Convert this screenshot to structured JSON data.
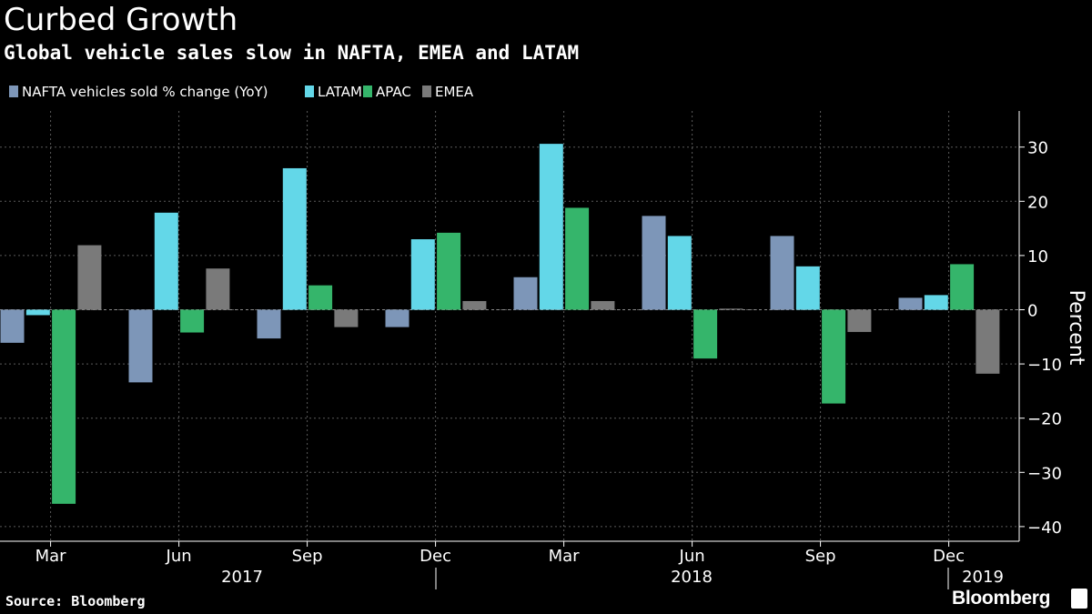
{
  "header": {
    "title": "Curbed Growth",
    "subtitle": "Global vehicle sales slow in NAFTA, EMEA and LATAM"
  },
  "footer": {
    "source": "Source: Bloomberg",
    "brand": "Bloomberg"
  },
  "chart_data": {
    "type": "bar",
    "title": "Curbed Growth",
    "subtitle": "Global vehicle sales slow in NAFTA, EMEA and LATAM",
    "ylabel": "Percent",
    "ylim": [
      -41,
      37
    ],
    "yticks": [
      30,
      20,
      10,
      0,
      -10,
      -20,
      -30,
      -40
    ],
    "grid": true,
    "legend_position": "top-left",
    "categories": [
      "Mar 2017",
      "Jun 2017",
      "Sep 2017",
      "Dec 2017",
      "Mar 2018",
      "Jun 2018",
      "Sep 2018",
      "Dec 2018"
    ],
    "x_tick_labels": [
      "Mar",
      "Jun",
      "Sep",
      "Dec",
      "Mar",
      "Jun",
      "Sep",
      "Dec"
    ],
    "year_labels": [
      "2017",
      "2018",
      "2019"
    ],
    "series": [
      {
        "name": "NAFTA vehicles sold % change (YoY)",
        "color": "#7d96b8",
        "values": [
          -6.1,
          -13.4,
          -5.3,
          -3.2,
          6.0,
          17.3,
          13.6,
          2.2
        ]
      },
      {
        "name": "LATAM",
        "color": "#63d7e8",
        "values": [
          -1.0,
          17.9,
          26.1,
          13.0,
          30.6,
          13.6,
          8.0,
          2.7
        ]
      },
      {
        "name": "APAC",
        "color": "#35b56b",
        "values": [
          -35.8,
          -4.2,
          4.5,
          14.2,
          18.8,
          -9.0,
          -17.3,
          8.4
        ]
      },
      {
        "name": "EMEA",
        "color": "#7a7a7a",
        "values": [
          11.9,
          7.6,
          -3.2,
          1.6,
          1.6,
          0.2,
          -4.1,
          -11.8
        ]
      }
    ]
  }
}
